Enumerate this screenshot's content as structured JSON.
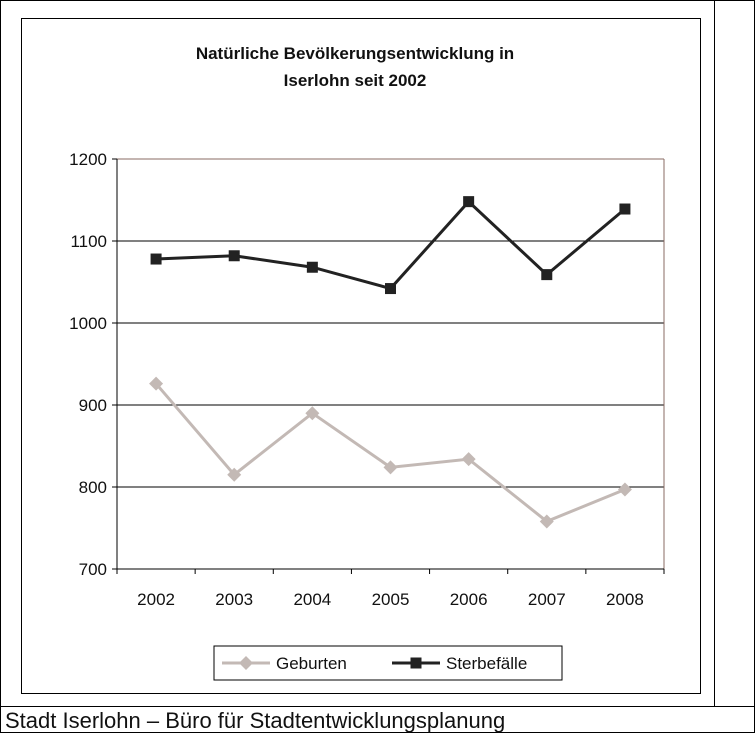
{
  "chart_data": {
    "type": "line",
    "title_lines": [
      "Natürliche Bevölkerungsentwicklung in",
      "Iserlohn seit 2002"
    ],
    "categories": [
      "2002",
      "2003",
      "2004",
      "2005",
      "2006",
      "2007",
      "2008"
    ],
    "ylim": [
      700,
      1200
    ],
    "yticks": [
      "700",
      "800",
      "900",
      "1000",
      "1100",
      "1200"
    ],
    "grid": true,
    "legend_position": "bottom",
    "series": [
      {
        "name": "Geburten",
        "values": [
          926,
          815,
          890,
          824,
          834,
          758,
          797
        ],
        "color": "#c3b9b5",
        "marker": "diamond"
      },
      {
        "name": "Sterbefälle",
        "values": [
          1078,
          1082,
          1068,
          1042,
          1148,
          1059,
          1139
        ],
        "color": "#222222",
        "marker": "square"
      }
    ]
  },
  "caption": "Stadt Iserlohn – Büro für Stadtentwicklungsplanung"
}
